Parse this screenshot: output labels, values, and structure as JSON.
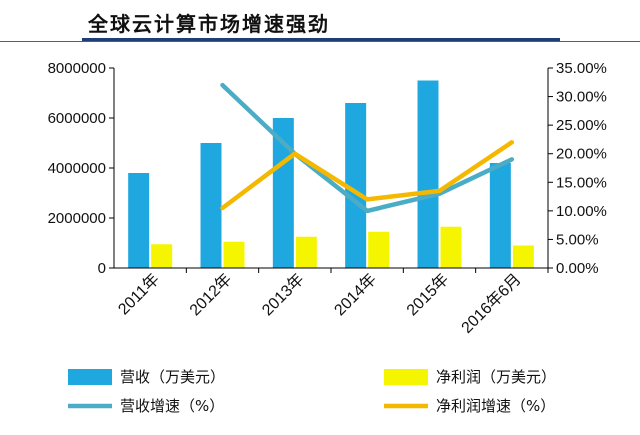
{
  "header": {
    "title": "全球云计算市场增速强劲"
  },
  "colors": {
    "revenue_bar": "#1fa8e0",
    "profit_bar": "#f5f500",
    "revenue_growth_line": "#4bacc6",
    "profit_growth_line": "#f5b800",
    "axis": "#000000",
    "title_rule": "#1f3d79"
  },
  "chart_data": {
    "type": "bar",
    "categories": [
      "2011年",
      "2012年",
      "2013年",
      "2014年",
      "2015年",
      "2016年6月"
    ],
    "series": [
      {
        "name": "营收（万美元）",
        "type": "bar",
        "axis": "left",
        "values": [
          3800000,
          5000000,
          6000000,
          6600000,
          7500000,
          4200000
        ]
      },
      {
        "name": "净利润（万美元）",
        "type": "bar",
        "axis": "left",
        "values": [
          950000,
          1050000,
          1250000,
          1450000,
          1650000,
          900000
        ]
      },
      {
        "name": "营收增速（%）",
        "type": "line",
        "axis": "right",
        "values": [
          null,
          0.32,
          0.2,
          0.1,
          0.13,
          0.19
        ]
      },
      {
        "name": "净利润增速（%）",
        "type": "line",
        "axis": "right",
        "values": [
          null,
          0.105,
          0.2,
          0.12,
          0.135,
          0.22
        ]
      }
    ],
    "y_left": {
      "min": 0,
      "max": 8000000,
      "ticks": [
        "0",
        "2000000",
        "4000000",
        "6000000",
        "8000000"
      ]
    },
    "y_right": {
      "min": 0,
      "max": 0.35,
      "ticks": [
        "0.00%",
        "5.00%",
        "10.00%",
        "15.00%",
        "20.00%",
        "25.00%",
        "30.00%",
        "35.00%"
      ]
    },
    "grid": false,
    "legend_position": "bottom"
  }
}
